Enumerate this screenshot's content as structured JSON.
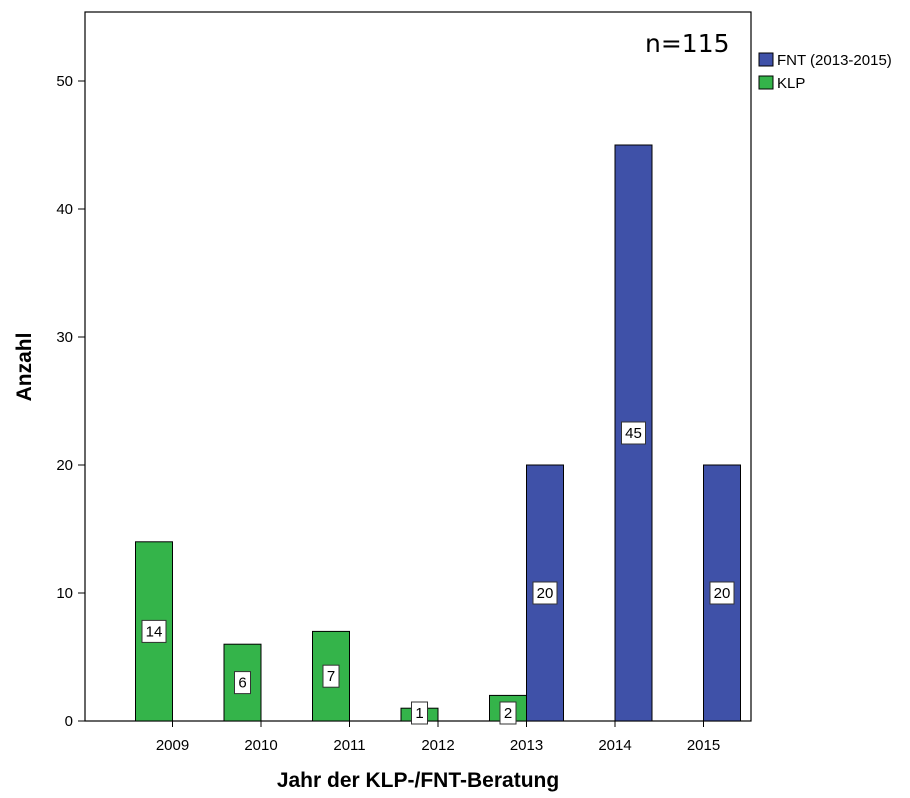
{
  "chart_data": {
    "type": "bar",
    "title": "",
    "note": "n=115",
    "xlabel": "Jahr der KLP-/FNT-Beratung",
    "ylabel": "Anzahl",
    "categories": [
      "2009",
      "2010",
      "2011",
      "2012",
      "2013",
      "2014",
      "2015"
    ],
    "ylim": [
      0,
      55
    ],
    "yticks": [
      0,
      10,
      20,
      30,
      40,
      50
    ],
    "grid": false,
    "legend_position": "right",
    "series": [
      {
        "name": "FNT (2013-2015)",
        "color": "#3f51a8",
        "values": [
          null,
          null,
          null,
          null,
          20,
          45,
          20
        ]
      },
      {
        "name": "KLP",
        "color": "#34b44a",
        "values": [
          14,
          6,
          7,
          1,
          2,
          null,
          null
        ]
      }
    ]
  }
}
